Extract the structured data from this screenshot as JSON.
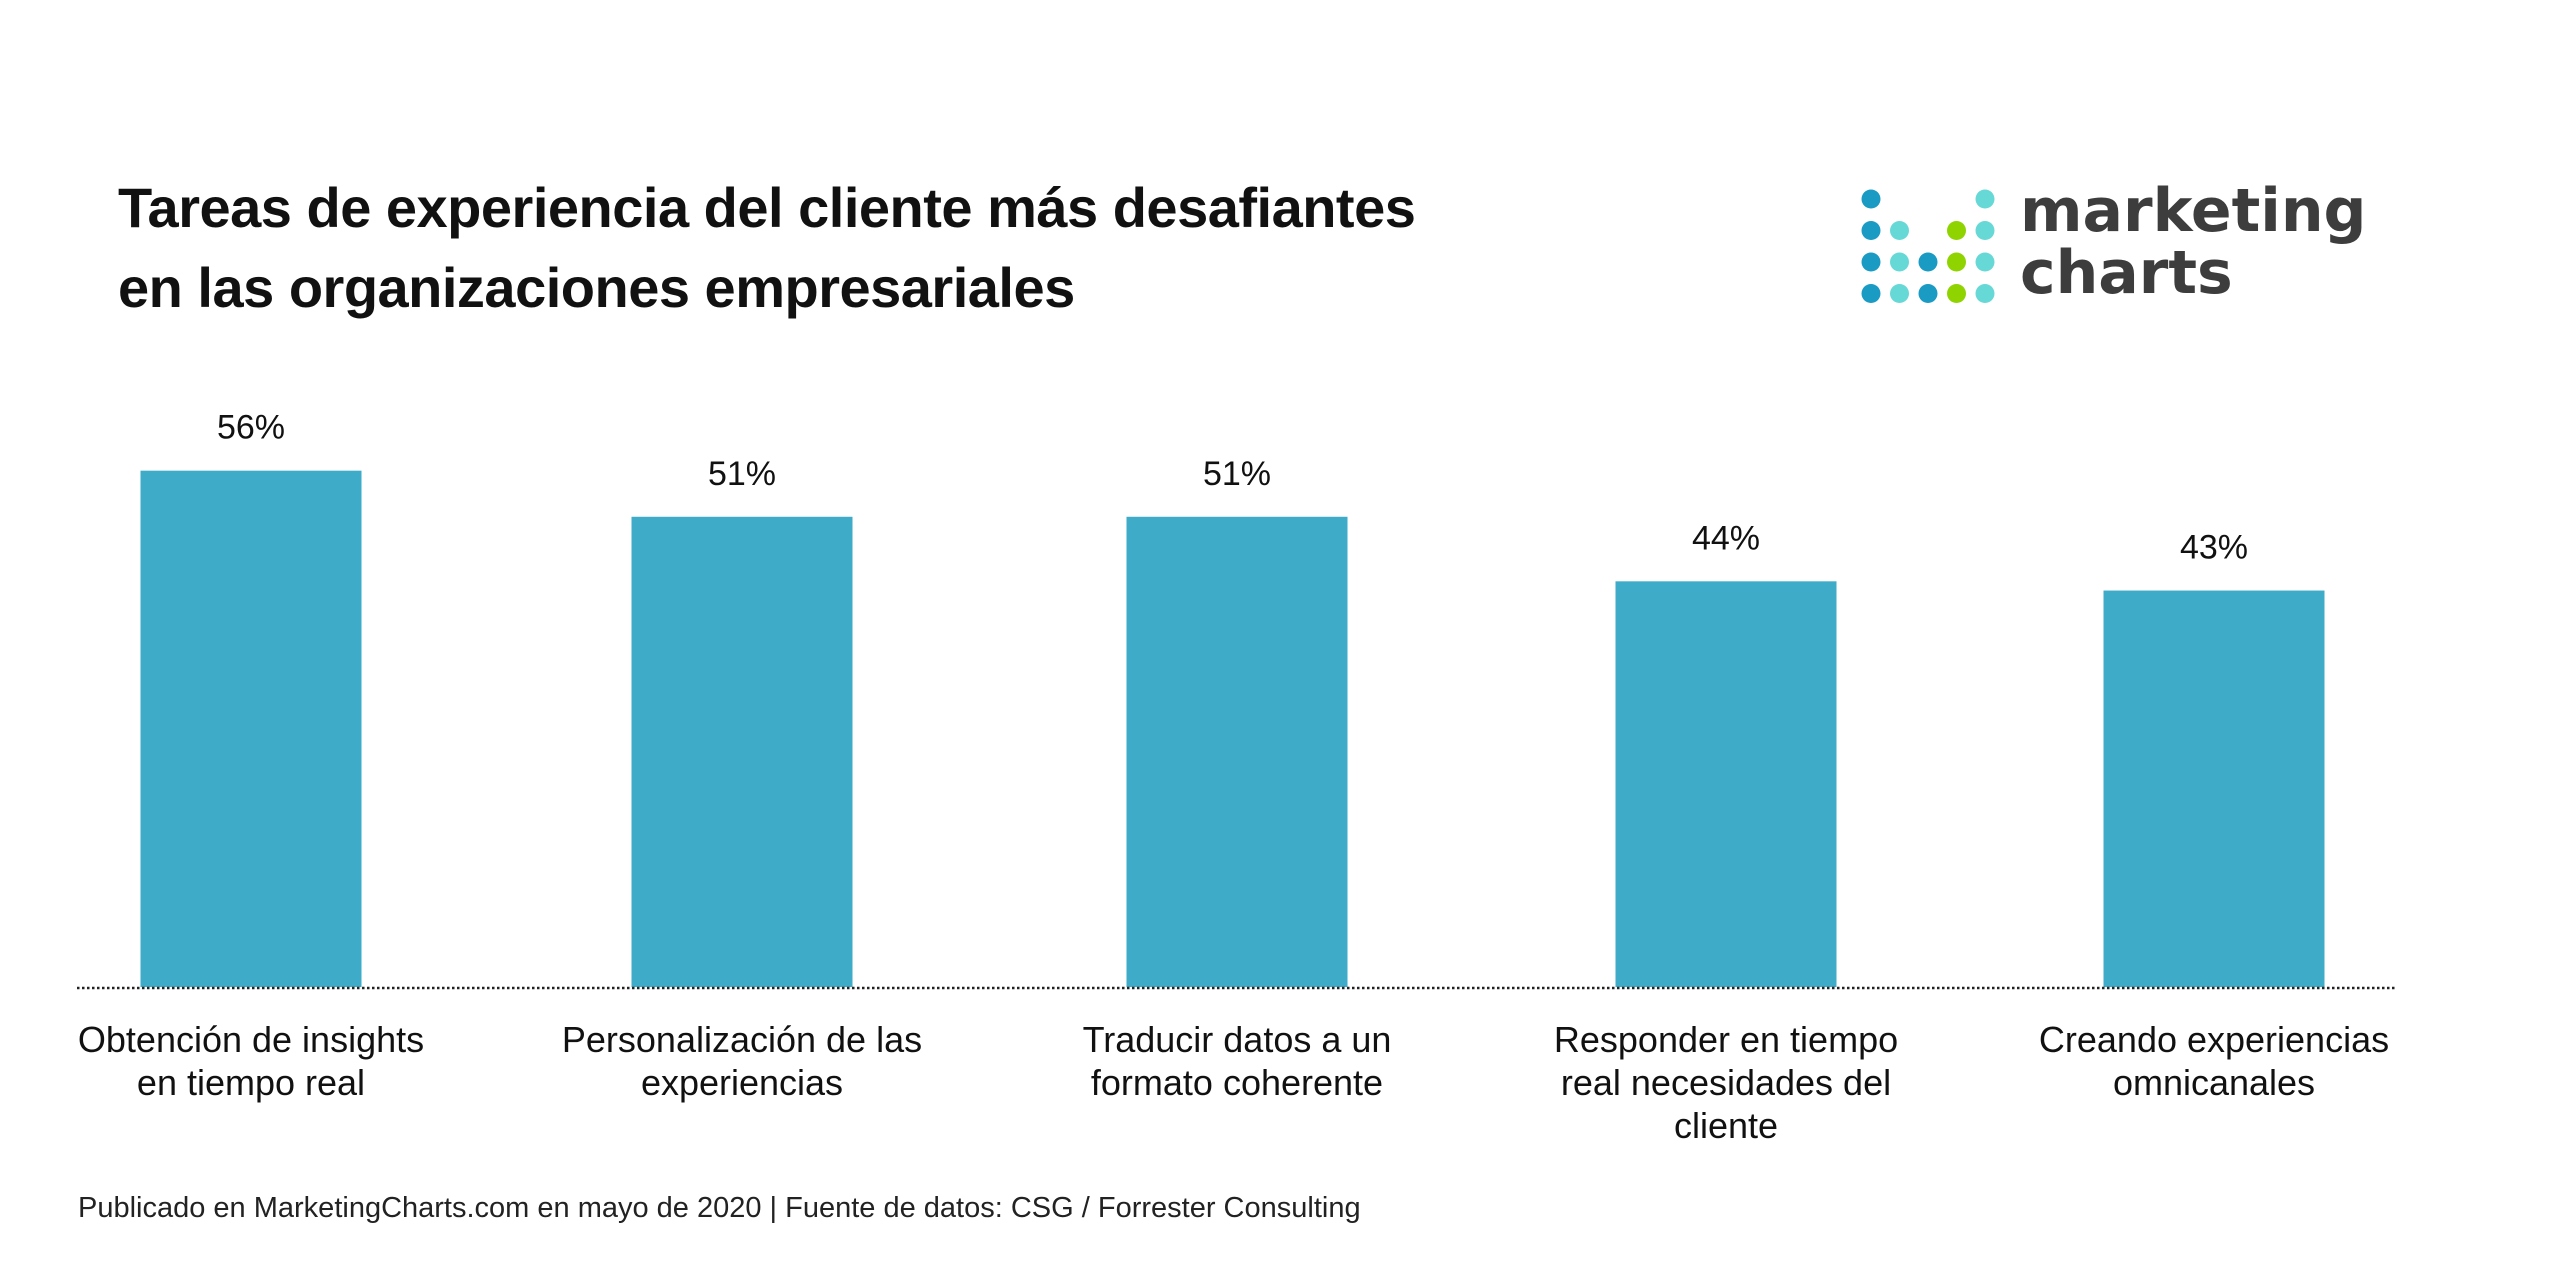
{
  "title_lines": [
    "Tareas de experiencia del cliente más desafiantes",
    "en las organizaciones empresariales"
  ],
  "logo": {
    "line1": "marketing",
    "line2": "charts",
    "colors": {
      "dark": "#1a9bc4",
      "light": "#66d9d6",
      "green": "#8fd400",
      "text": "#3d3d3d"
    }
  },
  "source": "Publicado en MarketingCharts.com en mayo de 2020 | Fuente de datos: CSG / Forrester Consulting",
  "chart_data": {
    "type": "bar",
    "title": "Tareas de experiencia del cliente más desafiantes en las organizaciones empresariales",
    "categories": [
      [
        "Obtención de insights",
        "en tiempo real"
      ],
      [
        "Personalización de las",
        "experiencias"
      ],
      [
        "Traducir datos a un",
        "formato coherente"
      ],
      [
        "Responder en tiempo",
        "real necesidades del",
        "cliente"
      ],
      [
        "Creando experiencias",
        "omnicanales"
      ]
    ],
    "values": [
      56,
      51,
      51,
      44,
      43
    ],
    "data_labels": [
      "56%",
      "51%",
      "51%",
      "44%",
      "43%"
    ],
    "ylim": [
      0,
      60
    ],
    "grid": false,
    "bar_color": "#3eabc9",
    "baseline_style": "dotted"
  }
}
